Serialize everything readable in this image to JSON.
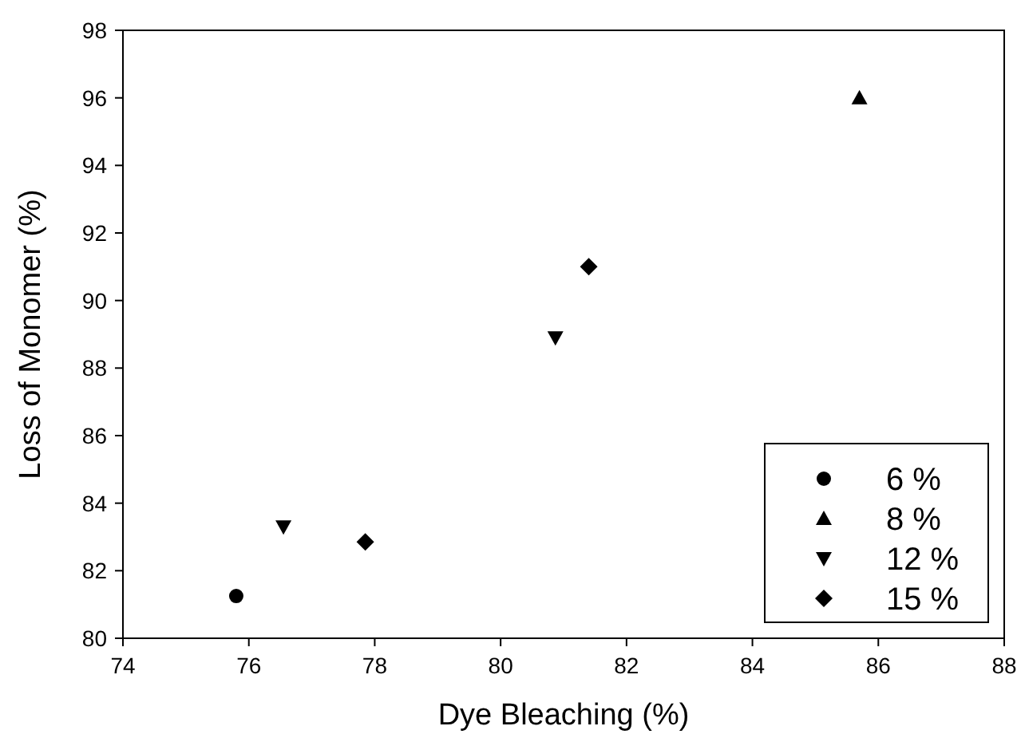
{
  "chart_data": {
    "type": "scatter",
    "xlabel": "Dye Bleaching (%)",
    "ylabel": "Loss of Monomer (%)",
    "xlim": [
      74,
      88
    ],
    "xticks": [
      74,
      76,
      78,
      80,
      82,
      84,
      86,
      88
    ],
    "ylim": [
      80,
      98
    ],
    "yticks": [
      80,
      82,
      84,
      86,
      88,
      90,
      92,
      94,
      96,
      98
    ],
    "grid": false,
    "legend": "bottom right",
    "series": [
      {
        "name": "6 %",
        "color": "#000000",
        "marker": "circle",
        "x": [
          75.8
        ],
        "values": [
          81.25
        ]
      },
      {
        "name": "8 %",
        "color": "#000000",
        "marker": "triangle",
        "x": [
          85.7
        ],
        "values": [
          96.0
        ]
      },
      {
        "name": "12 %",
        "color": "#000000",
        "marker": "triangle-down",
        "x": [
          76.55,
          80.87
        ],
        "values": [
          83.3,
          88.9
        ]
      },
      {
        "name": "15 %",
        "color": "#000000",
        "marker": "diamond",
        "x": [
          77.85,
          81.4
        ],
        "values": [
          82.85,
          91.0
        ]
      }
    ]
  }
}
